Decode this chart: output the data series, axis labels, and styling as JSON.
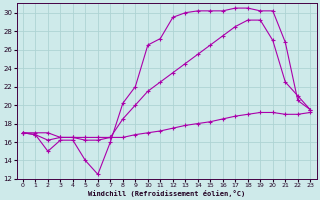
{
  "xlabel": "Windchill (Refroidissement éolien,°C)",
  "bg_color": "#ceeaea",
  "grid_color": "#aed4d4",
  "line_color": "#aa00aa",
  "xlim": [
    -0.5,
    23.5
  ],
  "ylim": [
    12,
    31
  ],
  "xticks": [
    0,
    1,
    2,
    3,
    4,
    5,
    6,
    7,
    8,
    9,
    10,
    11,
    12,
    13,
    14,
    15,
    16,
    17,
    18,
    19,
    20,
    21,
    22,
    23
  ],
  "yticks": [
    12,
    14,
    16,
    18,
    20,
    22,
    24,
    26,
    28,
    30
  ],
  "curve1_x": [
    0,
    1,
    2,
    3,
    4,
    5,
    6,
    7,
    8,
    9,
    10,
    11,
    12,
    13,
    14,
    15,
    16,
    17,
    18,
    19,
    20,
    21,
    22,
    23
  ],
  "curve1_y": [
    17.0,
    16.8,
    15.0,
    16.2,
    16.2,
    14.0,
    12.5,
    16.0,
    20.2,
    22.0,
    26.5,
    27.2,
    29.5,
    30.0,
    30.2,
    30.2,
    30.2,
    30.5,
    30.5,
    30.2,
    30.2,
    26.8,
    20.5,
    19.5
  ],
  "curve2_x": [
    0,
    1,
    2,
    3,
    4,
    5,
    6,
    7,
    8,
    9,
    10,
    11,
    12,
    13,
    14,
    15,
    16,
    17,
    18,
    19,
    20,
    21,
    22,
    23
  ],
  "curve2_y": [
    17.0,
    16.8,
    16.2,
    16.5,
    16.5,
    16.2,
    16.2,
    16.5,
    18.5,
    20.0,
    21.5,
    22.5,
    23.5,
    24.5,
    25.5,
    26.5,
    27.5,
    28.5,
    29.2,
    29.2,
    27.0,
    22.5,
    21.0,
    19.5
  ],
  "curve3_x": [
    0,
    1,
    2,
    3,
    4,
    5,
    6,
    7,
    8,
    9,
    10,
    11,
    12,
    13,
    14,
    15,
    16,
    17,
    18,
    19,
    20,
    21,
    22,
    23
  ],
  "curve3_y": [
    17.0,
    17.0,
    17.0,
    16.5,
    16.5,
    16.5,
    16.5,
    16.5,
    16.5,
    16.8,
    17.0,
    17.2,
    17.5,
    17.8,
    18.0,
    18.2,
    18.5,
    18.8,
    19.0,
    19.2,
    19.2,
    19.0,
    19.0,
    19.2
  ]
}
